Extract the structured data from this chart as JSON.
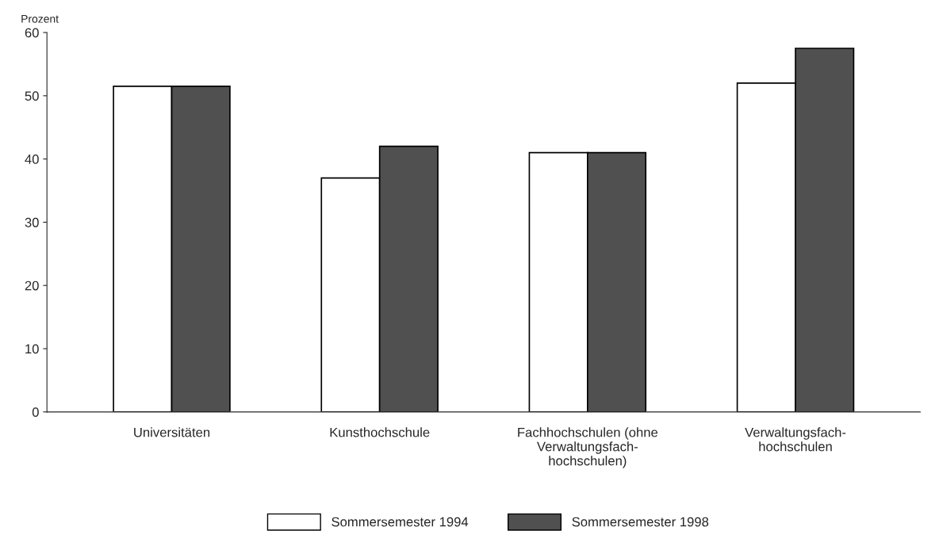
{
  "chart_data": {
    "type": "bar",
    "ylabel": "Prozent",
    "categories": [
      "Universitäten",
      "Kunsthochschule",
      "Fachhochschulen (ohne\nVerwaltungsfach-\nhochschulen)",
      "Verwaltungsfach-\nhochschulen"
    ],
    "series": [
      {
        "name": "Sommersemester 1994",
        "color": "#ffffff",
        "values": [
          51.5,
          37,
          41,
          52
        ]
      },
      {
        "name": "Sommersemester 1998",
        "color": "#505050",
        "values": [
          51.5,
          42,
          41,
          57.5
        ]
      }
    ],
    "ylim": [
      0,
      60
    ],
    "yticks": [
      0,
      10,
      20,
      30,
      40,
      50,
      60
    ],
    "grid": false,
    "legend": "bottom"
  }
}
